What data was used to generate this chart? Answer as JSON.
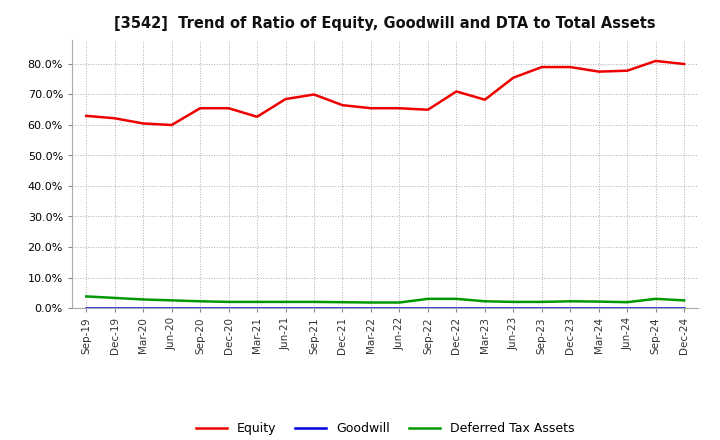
{
  "title": "[3542]  Trend of Ratio of Equity, Goodwill and DTA to Total Assets",
  "x_labels": [
    "Sep-19",
    "Dec-19",
    "Mar-20",
    "Jun-20",
    "Sep-20",
    "Dec-20",
    "Mar-21",
    "Jun-21",
    "Sep-21",
    "Dec-21",
    "Mar-22",
    "Jun-22",
    "Sep-22",
    "Dec-22",
    "Mar-23",
    "Jun-23",
    "Sep-23",
    "Dec-23",
    "Mar-24",
    "Jun-24",
    "Sep-24",
    "Dec-24"
  ],
  "equity": [
    0.63,
    0.622,
    0.605,
    0.6,
    0.655,
    0.655,
    0.627,
    0.685,
    0.7,
    0.665,
    0.655,
    0.655,
    0.65,
    0.71,
    0.683,
    0.755,
    0.79,
    0.79,
    0.775,
    0.778,
    0.81,
    0.8
  ],
  "goodwill": [
    0.0,
    0.0,
    0.0,
    0.0,
    0.0,
    0.0,
    0.0,
    0.0,
    0.0,
    0.0,
    0.0,
    0.0,
    0.0,
    0.0,
    0.0,
    0.0,
    0.0,
    0.0,
    0.0,
    0.0,
    0.0,
    0.0
  ],
  "dta": [
    0.038,
    0.033,
    0.028,
    0.025,
    0.022,
    0.02,
    0.02,
    0.02,
    0.02,
    0.019,
    0.018,
    0.018,
    0.03,
    0.03,
    0.022,
    0.02,
    0.02,
    0.022,
    0.021,
    0.019,
    0.03,
    0.025
  ],
  "equity_color": "#ee0000",
  "goodwill_color": "#0000dd",
  "dta_color": "#009900",
  "ylim": [
    0.0,
    0.88
  ],
  "yticks": [
    0.0,
    0.1,
    0.2,
    0.3,
    0.4,
    0.5,
    0.6,
    0.7,
    0.8
  ],
  "bg_color": "#ffffff",
  "grid_color": "#999999",
  "legend_labels": [
    "Equity",
    "Goodwill",
    "Deferred Tax Assets"
  ]
}
